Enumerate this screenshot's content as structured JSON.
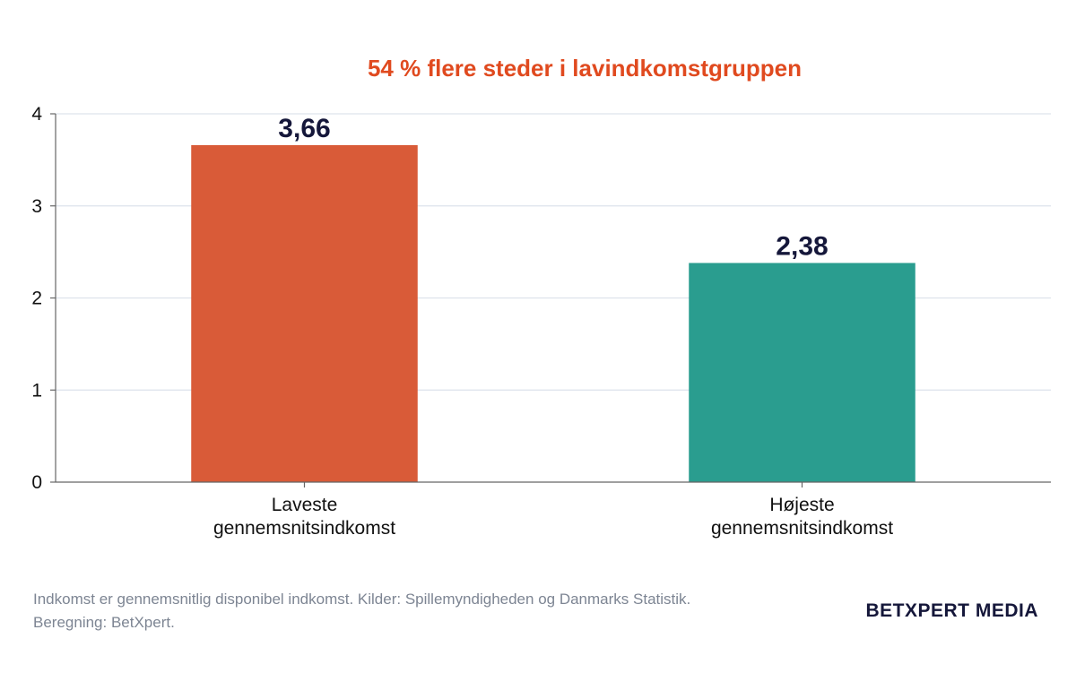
{
  "chart_data": {
    "type": "bar",
    "title": "54 % flere steder i lavindkomstgruppen",
    "categories": [
      [
        "Laveste",
        "gennemsnitsindkomst"
      ],
      [
        "Højeste",
        "gennemsnitsindkomst"
      ]
    ],
    "values": [
      3.66,
      2.38
    ],
    "value_labels": [
      "3,66",
      "2,38"
    ],
    "bar_colors": [
      "#d95b38",
      "#2a9d8f"
    ],
    "ylim": [
      0,
      4
    ],
    "yticks": [
      0,
      1,
      2,
      3,
      4
    ],
    "ytick_labels": [
      "0",
      "1",
      "2",
      "3",
      "4"
    ],
    "grid": true,
    "legend": "none",
    "xlabel": "",
    "ylabel": ""
  },
  "colors": {
    "title": "#e04a1f",
    "grid": "#dde3ec",
    "axis": "#666666"
  },
  "footnote": {
    "line1": "Indkomst er gennemsnitlig disponibel indkomst. Kilder: Spillemyndigheden og Danmarks Statistik.",
    "line2": "Beregning: BetXpert."
  },
  "brand": "BETXPERT MEDIA"
}
